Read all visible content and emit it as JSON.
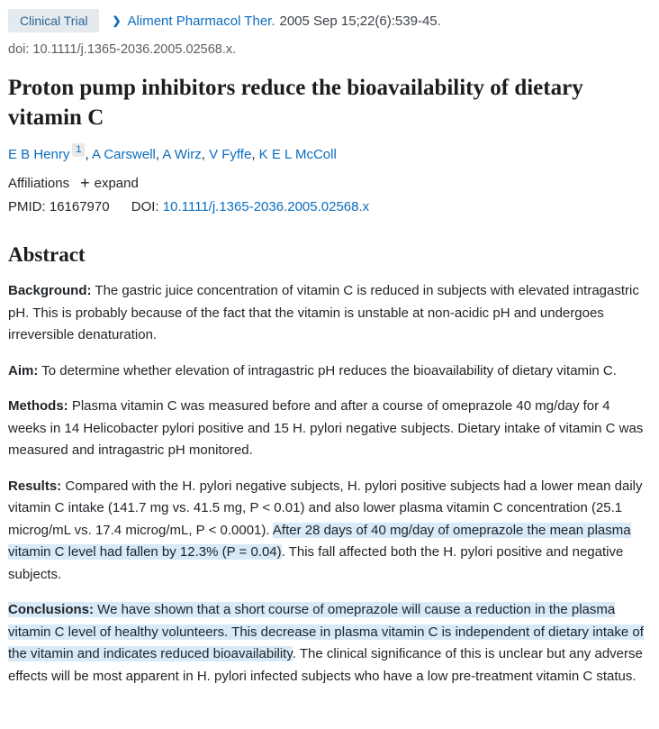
{
  "header": {
    "badge_label": "Clinical Trial",
    "journal_link": "Aliment Pharmacol Ther.",
    "citation": "2005 Sep 15;22(6):539-45.",
    "doi_line": "doi: 10.1111/j.1365-2036.2005.02568.x."
  },
  "icons": {
    "chevron_right": "❯",
    "plus": "+"
  },
  "title": "Proton pump inhibitors reduce the bioavailability of dietary vitamin C",
  "authors": [
    {
      "name": "E B Henry",
      "sup": "1",
      "sep": ", "
    },
    {
      "name": "A Carswell",
      "sep": ", "
    },
    {
      "name": "A Wirz",
      "sep": ", "
    },
    {
      "name": "V Fyffe",
      "sep": ", "
    },
    {
      "name": "K E L McColl",
      "sep": ""
    }
  ],
  "affiliations": {
    "label": "Affiliations",
    "expand_label": "expand"
  },
  "identifiers": {
    "pmid_label": "PMID:",
    "pmid_value": "16167970",
    "doi_label": "DOI:",
    "doi_value": "10.1111/j.1365-2036.2005.02568.x"
  },
  "abstract": {
    "heading": "Abstract",
    "sections": [
      {
        "label": "Background:",
        "segments": [
          {
            "text": " The gastric juice concentration of vitamin C is reduced in subjects with elevated intragastric pH. This is probably because of the fact that the vitamin is unstable at non-acidic pH and undergoes irreversible denaturation.",
            "highlight": false
          }
        ]
      },
      {
        "label": "Aim:",
        "segments": [
          {
            "text": " To determine whether elevation of intragastric pH reduces the bioavailability of dietary vitamin C.",
            "highlight": false
          }
        ]
      },
      {
        "label": "Methods:",
        "segments": [
          {
            "text": " Plasma vitamin C was measured before and after a course of omeprazole 40 mg/day for 4 weeks in 14 Helicobacter pylori positive and 15 H. pylori negative subjects. Dietary intake of vitamin C was measured and intragastric pH monitored.",
            "highlight": false
          }
        ]
      },
      {
        "label": "Results:",
        "segments": [
          {
            "text": " Compared with the H. pylori negative subjects, H. pylori positive subjects had a lower mean daily vitamin C intake (141.7 mg vs. 41.5 mg, P < 0.01) and also lower plasma vitamin C concentration (25.1 microg/mL vs. 17.4 microg/mL, P < 0.0001). ",
            "highlight": false
          },
          {
            "text": "After 28 days of 40 mg/day of omeprazole the mean plasma vitamin C level had fallen by 12.3% (P = 0.04)",
            "highlight": true
          },
          {
            "text": ". This fall affected both the H. pylori positive and negative subjects.",
            "highlight": false
          }
        ]
      },
      {
        "label": "Conclusions:",
        "label_highlighted": true,
        "segments": [
          {
            "text": " We have shown that a short course of omeprazole will cause a reduction in the plasma vitamin C level of healthy volunteers. This decrease in plasma vitamin C is independent of dietary intake of the vitamin and indicates reduced bioavailability",
            "highlight": true
          },
          {
            "text": ". The clinical significance of this is unclear but any adverse effects will be most apparent in H. pylori infected subjects who have a low pre-treatment vitamin C status.",
            "highlight": false
          }
        ]
      }
    ]
  },
  "colors": {
    "link_blue": "#0b6dbe",
    "badge_bg": "#e4eaee",
    "badge_text": "#2a6496",
    "highlight_bg": "#d8eaf8",
    "body_text": "#212529",
    "muted_gray": "#5a6066"
  }
}
